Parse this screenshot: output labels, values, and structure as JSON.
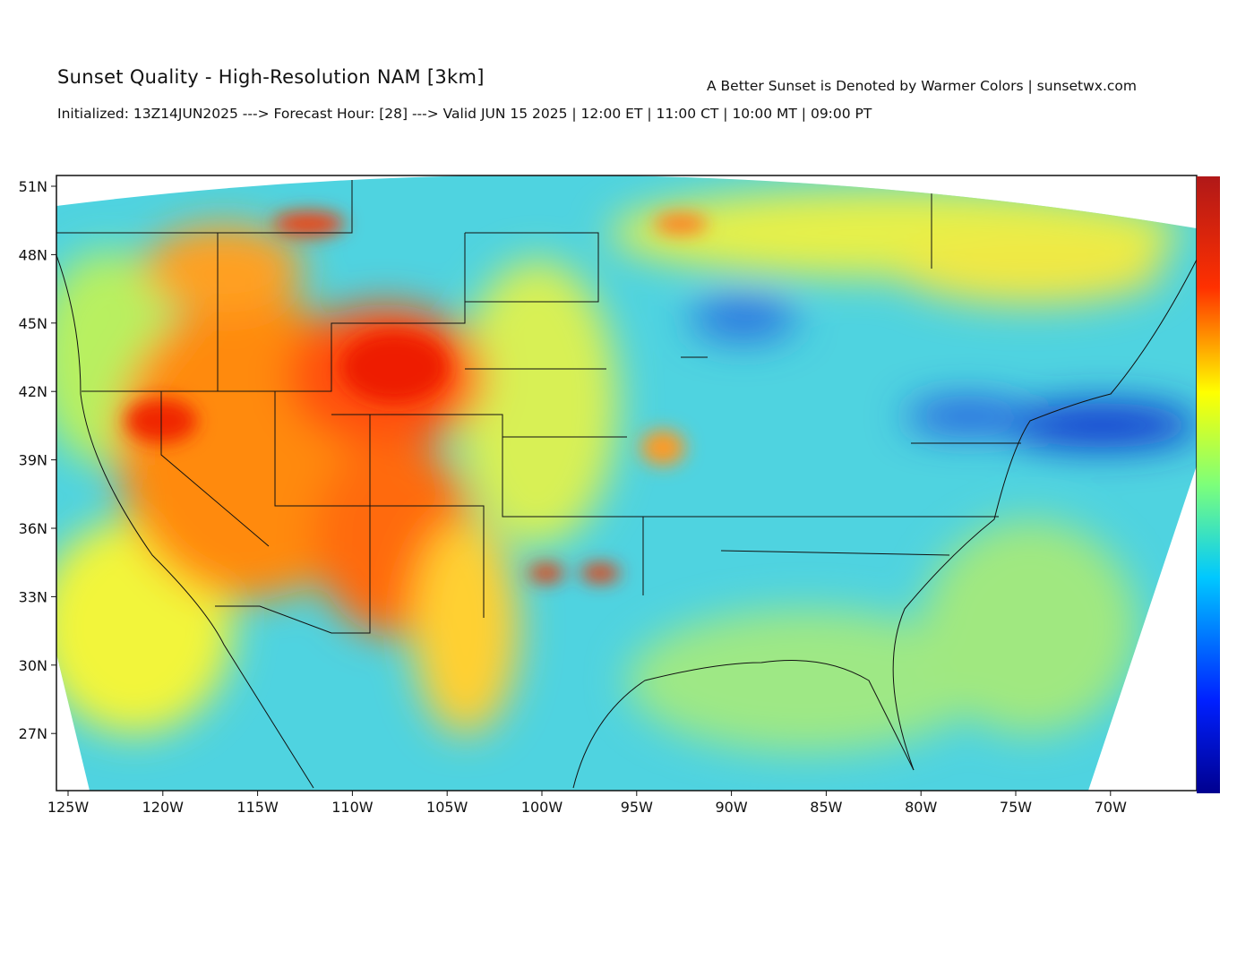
{
  "header": {
    "title": "Sunset Quality - High-Resolution NAM [3km]",
    "tagline": "A Better Sunset is Denoted by Warmer Colors | sunsetwx.com",
    "init_line": "Initialized: 13Z14JUN2025 ---> Forecast Hour: [28] ---> Valid JUN 15 2025 | 12:00 ET | 11:00 CT | 10:00 MT | 09:00 PT"
  },
  "map": {
    "lat_labels": [
      "51N",
      "48N",
      "45N",
      "42N",
      "39N",
      "36N",
      "33N",
      "30N",
      "27N"
    ],
    "lon_labels": [
      "125W",
      "120W",
      "115W",
      "110W",
      "105W",
      "100W",
      "95W",
      "90W",
      "85W",
      "80W",
      "75W",
      "70W"
    ]
  }
}
